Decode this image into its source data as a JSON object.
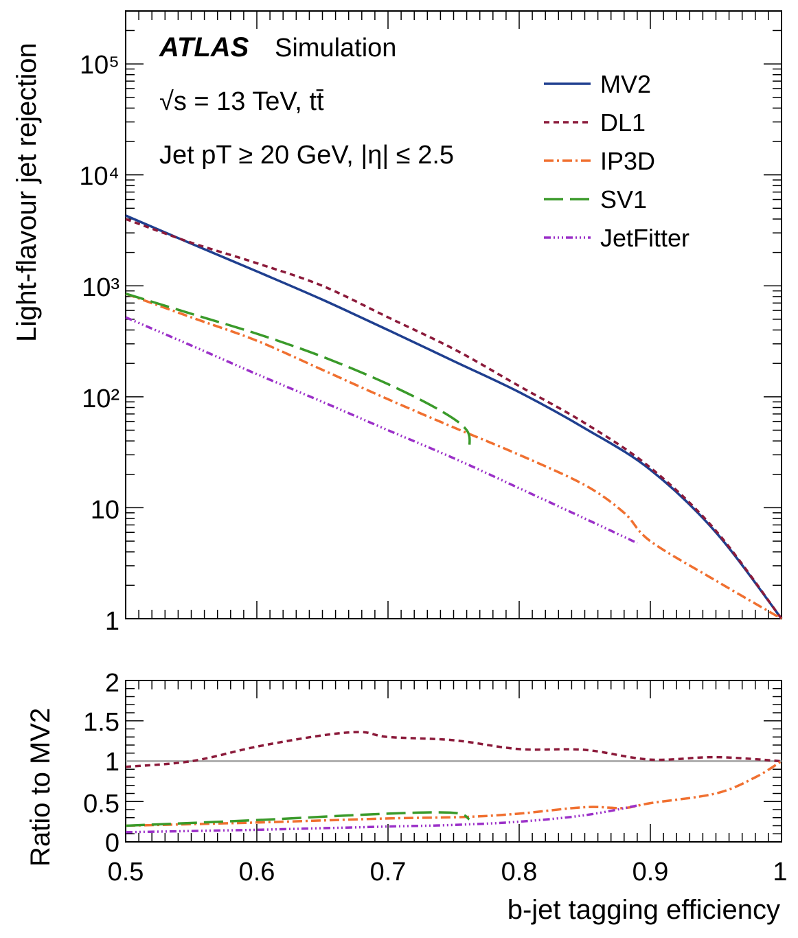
{
  "chart_data": [
    {
      "type": "line",
      "panel": "main",
      "xlim": [
        0.5,
        1.0
      ],
      "ylim": [
        1,
        300000
      ],
      "yscale": "log",
      "ylabel": "Light-flavour jet rejection",
      "xlabel": "",
      "y_tick_labels": [
        "1",
        "10",
        "10²",
        "10³",
        "10⁴",
        "10⁵"
      ],
      "legend": {
        "placement": "top-right"
      },
      "annotations": {
        "experiment": "ATLAS",
        "label": "Simulation",
        "energy": "√s = 13 TeV, tt̄",
        "cuts": "Jet pT ≥ 20 GeV, |η| ≤ 2.5"
      },
      "series": [
        {
          "name": "MV2",
          "color": "#1f3f8f",
          "dash": "solid",
          "x": [
            0.5,
            0.55,
            0.6,
            0.65,
            0.7,
            0.75,
            0.8,
            0.85,
            0.9,
            0.95,
            1.0
          ],
          "y": [
            4300,
            2400,
            1350,
            750,
            400,
            210,
            110,
            52,
            22,
            6,
            1
          ]
        },
        {
          "name": "DL1",
          "color": "#8b1a3a",
          "dash": "8,6",
          "x": [
            0.5,
            0.55,
            0.6,
            0.65,
            0.7,
            0.75,
            0.8,
            0.85,
            0.9,
            0.95,
            1.0
          ],
          "y": [
            4000,
            2450,
            1600,
            1000,
            520,
            270,
            125,
            58,
            23,
            6.2,
            1
          ]
        },
        {
          "name": "IP3D",
          "color": "#f07030",
          "dash": "14,5,3,5",
          "x": [
            0.5,
            0.55,
            0.6,
            0.65,
            0.7,
            0.75,
            0.8,
            0.85,
            0.88,
            0.9,
            0.95,
            1.0
          ],
          "y": [
            850,
            520,
            320,
            175,
            95,
            53,
            30,
            16,
            9,
            5,
            2.2,
            1
          ]
        },
        {
          "name": "SV1",
          "color": "#3a9a2a",
          "dash": "28,10",
          "x": [
            0.5,
            0.55,
            0.6,
            0.65,
            0.7,
            0.74,
            0.76,
            0.762
          ],
          "y": [
            850,
            560,
            370,
            230,
            130,
            75,
            50,
            34
          ]
        },
        {
          "name": "JetFitter",
          "color": "#9b30c8",
          "dash": "10,4,2,4,2,4,2,4",
          "x": [
            0.5,
            0.55,
            0.6,
            0.65,
            0.7,
            0.75,
            0.8,
            0.85,
            0.89
          ],
          "y": [
            520,
            290,
            160,
            90,
            50,
            28,
            15,
            8,
            4.8
          ]
        }
      ]
    },
    {
      "type": "line",
      "panel": "ratio",
      "xlim": [
        0.5,
        1.0
      ],
      "ylim": [
        0,
        2
      ],
      "xlabel": "b-jet tagging efficiency",
      "ylabel": "Ratio to MV2",
      "x_tick_labels": [
        "0.5",
        "0.6",
        "0.7",
        "0.8",
        "0.9",
        "1"
      ],
      "y_tick_labels": [
        "0",
        "0.5",
        "1",
        "1.5",
        "2"
      ],
      "reference_line": {
        "y": 1,
        "color": "#b0b0b0"
      },
      "series": [
        {
          "name": "DL1",
          "color": "#8b1a3a",
          "dash": "8,6",
          "x": [
            0.5,
            0.55,
            0.6,
            0.65,
            0.68,
            0.7,
            0.75,
            0.8,
            0.85,
            0.9,
            0.95,
            1.0
          ],
          "y": [
            0.93,
            1.0,
            1.18,
            1.32,
            1.36,
            1.3,
            1.26,
            1.15,
            1.14,
            1.02,
            1.05,
            1.0
          ]
        },
        {
          "name": "IP3D",
          "color": "#f07030",
          "dash": "14,5,3,5",
          "x": [
            0.5,
            0.6,
            0.7,
            0.76,
            0.8,
            0.85,
            0.88,
            0.9,
            0.95,
            0.98,
            1.0
          ],
          "y": [
            0.2,
            0.24,
            0.29,
            0.31,
            0.35,
            0.43,
            0.42,
            0.48,
            0.6,
            0.8,
            1.0
          ]
        },
        {
          "name": "SV1",
          "color": "#3a9a2a",
          "dash": "28,10",
          "x": [
            0.5,
            0.6,
            0.7,
            0.75,
            0.762
          ],
          "y": [
            0.2,
            0.27,
            0.35,
            0.36,
            0.28
          ]
        },
        {
          "name": "JetFitter",
          "color": "#9b30c8",
          "dash": "10,4,2,4,2,4,2,4",
          "x": [
            0.5,
            0.6,
            0.7,
            0.75,
            0.8,
            0.85,
            0.89
          ],
          "y": [
            0.12,
            0.15,
            0.19,
            0.21,
            0.25,
            0.33,
            0.45
          ]
        }
      ]
    }
  ]
}
